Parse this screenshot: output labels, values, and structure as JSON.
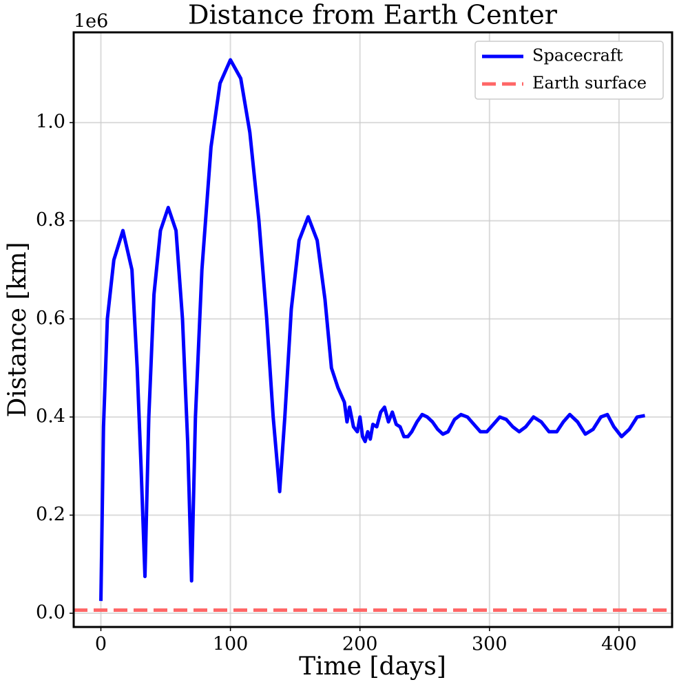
{
  "chart_data": {
    "type": "line",
    "title": "Distance from Earth Center",
    "x_label": "Time [days]",
    "y_label": "Distance [km]",
    "y_offset_text": "1e6",
    "xlim": [
      -21,
      441
    ],
    "ylim": [
      -0.028,
      1.184
    ],
    "xticks": [
      0,
      100,
      200,
      300,
      400
    ],
    "yticks": [
      {
        "value": 0,
        "label": "0.0"
      },
      0.2,
      0.4,
      0.6,
      0.8,
      {
        "value": 1,
        "label": "1.0"
      }
    ],
    "grid": true,
    "legend": "upper right",
    "series": [
      {
        "name": "Spacecraft",
        "color": "#0000ff",
        "style": "solid",
        "x": [
          0,
          2,
          5,
          10,
          17,
          24,
          28,
          31,
          34,
          37,
          41,
          46,
          52,
          58,
          63,
          67,
          70,
          73,
          78,
          85,
          92,
          100,
          108,
          115,
          122,
          128,
          133,
          138,
          142,
          147,
          153,
          160,
          167,
          173,
          178,
          183,
          188,
          190,
          192,
          195,
          198,
          200,
          202,
          204,
          206,
          208,
          210,
          213,
          216,
          219,
          222,
          225,
          228,
          231,
          234,
          237,
          240,
          244,
          248,
          252,
          256,
          260,
          264,
          268,
          273,
          278,
          283,
          288,
          293,
          298,
          303,
          308,
          313,
          318,
          323,
          328,
          334,
          340,
          346,
          352,
          357,
          362,
          368,
          374,
          380,
          386,
          391,
          396,
          402,
          408,
          414,
          420
        ],
        "values": [
          0.025,
          0.38,
          0.6,
          0.72,
          0.78,
          0.7,
          0.5,
          0.3,
          0.075,
          0.4,
          0.65,
          0.78,
          0.827,
          0.78,
          0.6,
          0.35,
          0.066,
          0.4,
          0.7,
          0.95,
          1.08,
          1.128,
          1.09,
          0.98,
          0.8,
          0.6,
          0.4,
          0.248,
          0.4,
          0.62,
          0.76,
          0.808,
          0.76,
          0.64,
          0.5,
          0.46,
          0.43,
          0.39,
          0.42,
          0.38,
          0.37,
          0.4,
          0.36,
          0.35,
          0.37,
          0.355,
          0.385,
          0.38,
          0.41,
          0.42,
          0.39,
          0.41,
          0.385,
          0.38,
          0.36,
          0.36,
          0.37,
          0.39,
          0.405,
          0.4,
          0.39,
          0.375,
          0.365,
          0.37,
          0.395,
          0.405,
          0.4,
          0.385,
          0.37,
          0.37,
          0.385,
          0.4,
          0.395,
          0.38,
          0.37,
          0.38,
          0.4,
          0.39,
          0.37,
          0.37,
          0.39,
          0.405,
          0.39,
          0.365,
          0.375,
          0.4,
          0.405,
          0.38,
          0.36,
          0.375,
          0.4,
          0.403
        ]
      },
      {
        "name": "Earth surface",
        "color": "#ff6666",
        "style": "dashed",
        "x": [
          -21,
          441
        ],
        "values": [
          0.0064,
          0.0064
        ]
      }
    ]
  }
}
